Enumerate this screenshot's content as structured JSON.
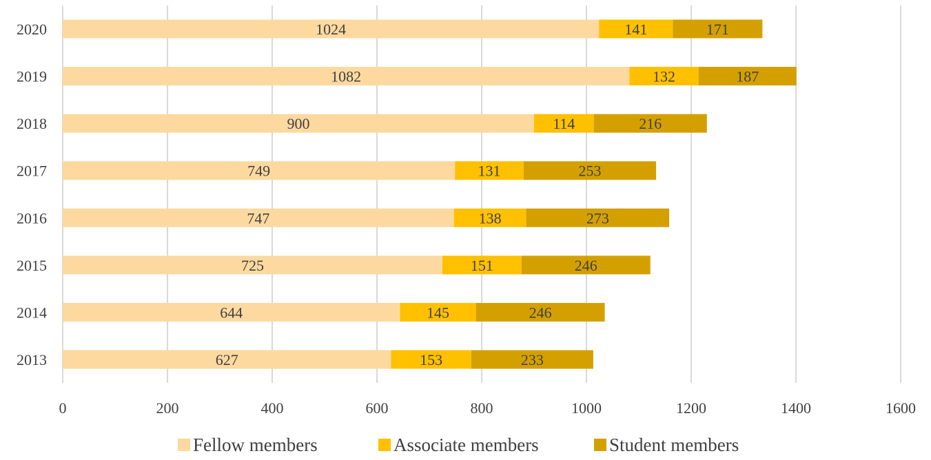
{
  "chart_data": {
    "type": "bar",
    "orientation": "horizontal",
    "stacked": true,
    "title": "",
    "xlabel": "",
    "ylabel": "",
    "categories": [
      "2013",
      "2014",
      "2015",
      "2016",
      "2017",
      "2018",
      "2019",
      "2020"
    ],
    "series": [
      {
        "name": "Fellow members",
        "color": "#FDD9A0",
        "values": [
          627,
          644,
          725,
          747,
          749,
          900,
          1082,
          1024
        ]
      },
      {
        "name": "Associate members",
        "color": "#FFC000",
        "values": [
          153,
          145,
          151,
          138,
          131,
          114,
          132,
          141
        ]
      },
      {
        "name": "Student members",
        "color": "#D4A000",
        "values": [
          233,
          246,
          246,
          273,
          253,
          216,
          187,
          171
        ]
      }
    ],
    "xlim": [
      0,
      1600
    ],
    "x_ticks": [
      0,
      200,
      400,
      600,
      800,
      1000,
      1200,
      1400,
      1600
    ],
    "grid": true,
    "legend_position": "bottom"
  }
}
